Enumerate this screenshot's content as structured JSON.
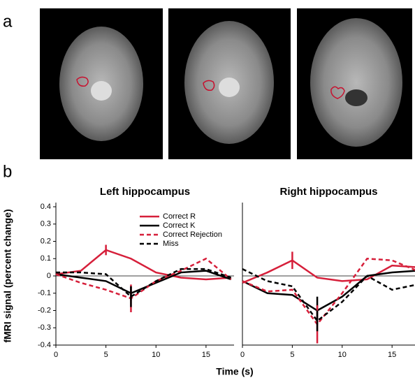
{
  "panel_labels": [
    "a",
    "b"
  ],
  "axis_labels": {
    "y": "fMRI signal (percent change)",
    "x": "Time (s)"
  },
  "chart_data": [
    {
      "type": "line",
      "title": "Left hippocampus",
      "legend": true,
      "x": [
        0,
        2.5,
        5,
        7.5,
        10,
        12.5,
        15,
        17.5
      ],
      "xlim": [
        0,
        17.8
      ],
      "xticks": [
        0,
        5,
        10,
        15
      ],
      "ylim": [
        -0.4,
        0.4
      ],
      "yticks": [
        -0.4,
        -0.3,
        -0.2,
        -0.1,
        0,
        0.1,
        0.2,
        0.3,
        0.4
      ],
      "series": [
        {
          "name": "Correct R",
          "color": "#d61f3a",
          "dash": false,
          "values": [
            0.01,
            0.03,
            0.15,
            0.1,
            0.02,
            -0.01,
            -0.02,
            -0.01
          ],
          "errors": [
            null,
            null,
            0.03,
            null,
            null,
            null,
            null,
            null
          ]
        },
        {
          "name": "Correct K",
          "color": "#000000",
          "dash": false,
          "values": [
            0.01,
            -0.01,
            -0.03,
            -0.1,
            -0.04,
            0.02,
            0.03,
            -0.02
          ],
          "errors": [
            null,
            null,
            null,
            0.04,
            null,
            null,
            null,
            null
          ]
        },
        {
          "name": "Correct Rejection",
          "color": "#d61f3a",
          "dash": true,
          "values": [
            0.01,
            -0.04,
            -0.08,
            -0.13,
            -0.03,
            0.03,
            0.1,
            -0.02
          ],
          "errors": [
            null,
            null,
            null,
            0.08,
            null,
            null,
            null,
            null
          ]
        },
        {
          "name": "Miss",
          "color": "#000000",
          "dash": true,
          "values": [
            0.02,
            0.02,
            0.01,
            -0.12,
            -0.03,
            0.04,
            0.04,
            -0.01
          ],
          "errors": [
            null,
            null,
            null,
            0.06,
            null,
            null,
            null,
            null
          ]
        }
      ]
    },
    {
      "type": "line",
      "title": "Right hippocampus",
      "legend": false,
      "x": [
        0,
        2.5,
        5,
        7.5,
        10,
        12.5,
        15,
        17.5
      ],
      "xlim": [
        0,
        17.3
      ],
      "xticks": [
        0,
        5,
        10,
        15
      ],
      "ylim": [
        -0.4,
        0.4
      ],
      "series": [
        {
          "color": "#d61f3a",
          "dash": false,
          "values": [
            -0.04,
            0.02,
            0.09,
            -0.01,
            -0.03,
            -0.02,
            0.06,
            0.05
          ],
          "errors": [
            null,
            null,
            0.05,
            null,
            null,
            null,
            null,
            null
          ]
        },
        {
          "color": "#000000",
          "dash": false,
          "values": [
            -0.03,
            -0.1,
            -0.11,
            -0.2,
            -0.12,
            0.0,
            0.02,
            0.03
          ],
          "errors": [
            null,
            null,
            null,
            0.08,
            null,
            null,
            null,
            null
          ]
        },
        {
          "color": "#d61f3a",
          "dash": true,
          "values": [
            -0.03,
            -0.09,
            -0.08,
            -0.28,
            -0.1,
            0.1,
            0.09,
            0.03
          ],
          "errors": [
            null,
            null,
            null,
            0.11,
            null,
            null,
            null,
            null
          ]
        },
        {
          "color": "#000000",
          "dash": true,
          "values": [
            0.04,
            -0.03,
            -0.06,
            -0.26,
            -0.15,
            0.0,
            -0.08,
            -0.05
          ],
          "errors": [
            null,
            null,
            null,
            0.06,
            null,
            null,
            null,
            null
          ]
        }
      ]
    }
  ]
}
